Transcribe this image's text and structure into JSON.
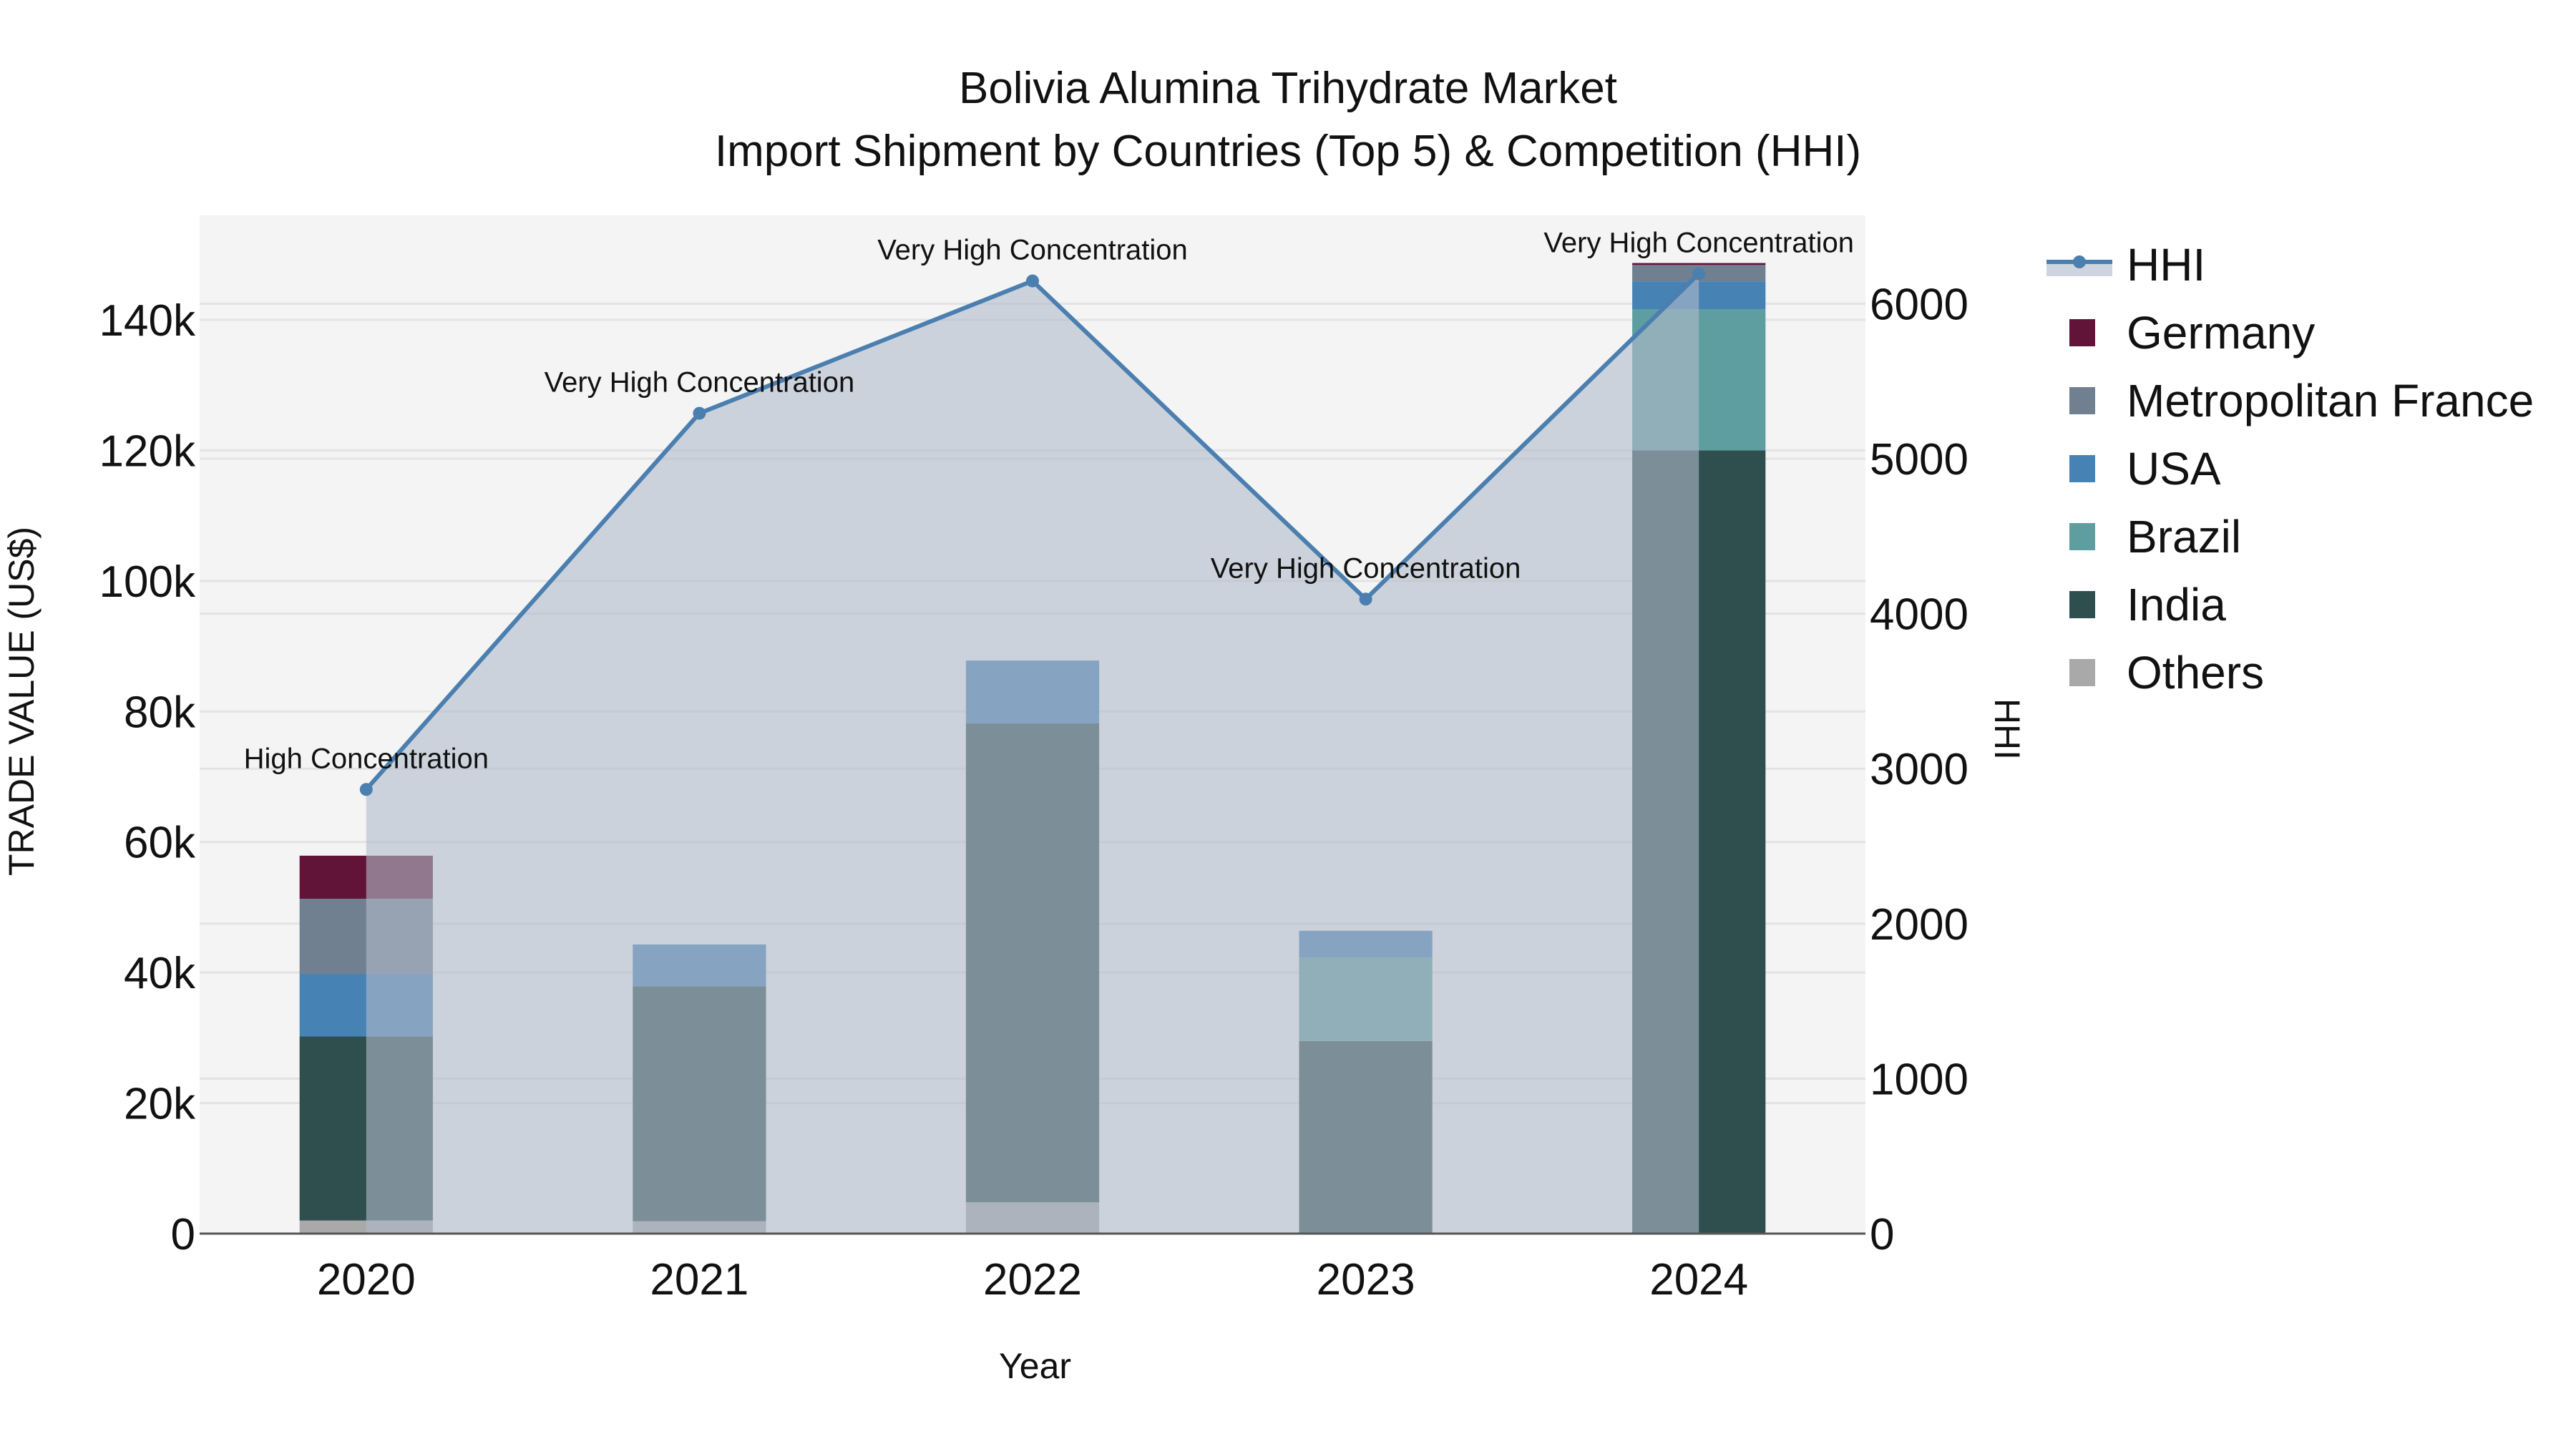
{
  "title": {
    "line1": "Bolivia Alumina Trihydrate Market",
    "line2": "Import Shipment by Countries (Top 5) & Competition (HHI)"
  },
  "axes": {
    "x_title": "Year",
    "y_left_title": "TRADE VALUE (US$)",
    "y_right_title": "HHI",
    "y_left_ticks": [
      "0",
      "20k",
      "40k",
      "60k",
      "80k",
      "100k",
      "120k",
      "140k"
    ],
    "y_right_ticks": [
      "0",
      "1000",
      "2000",
      "3000",
      "4000",
      "5000",
      "6000"
    ]
  },
  "legend": [
    {
      "name": "HHI",
      "type": "line",
      "color": "#4a7fb0"
    },
    {
      "name": "Germany",
      "type": "bar",
      "color": "#611437"
    },
    {
      "name": "Metropolitan France",
      "type": "bar",
      "color": "#708090"
    },
    {
      "name": "USA",
      "type": "bar",
      "color": "#4682b4"
    },
    {
      "name": "Brazil",
      "type": "bar",
      "color": "#5f9ea0"
    },
    {
      "name": "India",
      "type": "bar",
      "color": "#2f4f4f"
    },
    {
      "name": "Others",
      "type": "bar",
      "color": "#a9a9a9"
    }
  ],
  "colors": {
    "plot_bg": "#f4f4f4",
    "grid": "#e3e3e3",
    "hhi_line": "#4a7fb0",
    "hhi_fill": "rgba(176,187,201,0.6)",
    "axis_line": "#555555"
  },
  "chart_data": {
    "type": "bar",
    "stacked": true,
    "title": "Bolivia Alumina Trihydrate Market — Import Shipment by Countries (Top 5) & Competition (HHI)",
    "xlabel": "Year",
    "ylabel": "TRADE VALUE (US$)",
    "y2label": "HHI",
    "categories": [
      "2020",
      "2021",
      "2022",
      "2023",
      "2024"
    ],
    "ylim": [
      0,
      156000
    ],
    "y2lim": [
      0,
      6570
    ],
    "grid": true,
    "legend_position": "right",
    "series": [
      {
        "name": "Others",
        "color": "#a9a9a9",
        "values": [
          2000,
          1900,
          4800,
          0,
          0
        ]
      },
      {
        "name": "India",
        "color": "#2f4f4f",
        "values": [
          28200,
          36000,
          73400,
          29500,
          120000
        ]
      },
      {
        "name": "Brazil",
        "color": "#5f9ea0",
        "values": [
          0,
          0,
          0,
          12800,
          21600
        ]
      },
      {
        "name": "USA",
        "color": "#4682b4",
        "values": [
          9600,
          6400,
          9600,
          4100,
          4300
        ]
      },
      {
        "name": "Metropolitan France",
        "color": "#708090",
        "values": [
          11500,
          0,
          0,
          0,
          2500
        ]
      },
      {
        "name": "Germany",
        "color": "#611437",
        "values": [
          6600,
          0,
          0,
          0,
          300
        ]
      }
    ],
    "line_series": {
      "name": "HHI",
      "axis": "right",
      "type": "line+area",
      "values": [
        2866,
        5293,
        6147,
        4094,
        6193
      ],
      "annotations": [
        "High Concentration",
        "Very High Concentration",
        "Very High Concentration",
        "Very High Concentration",
        "Very High Concentration"
      ]
    }
  }
}
